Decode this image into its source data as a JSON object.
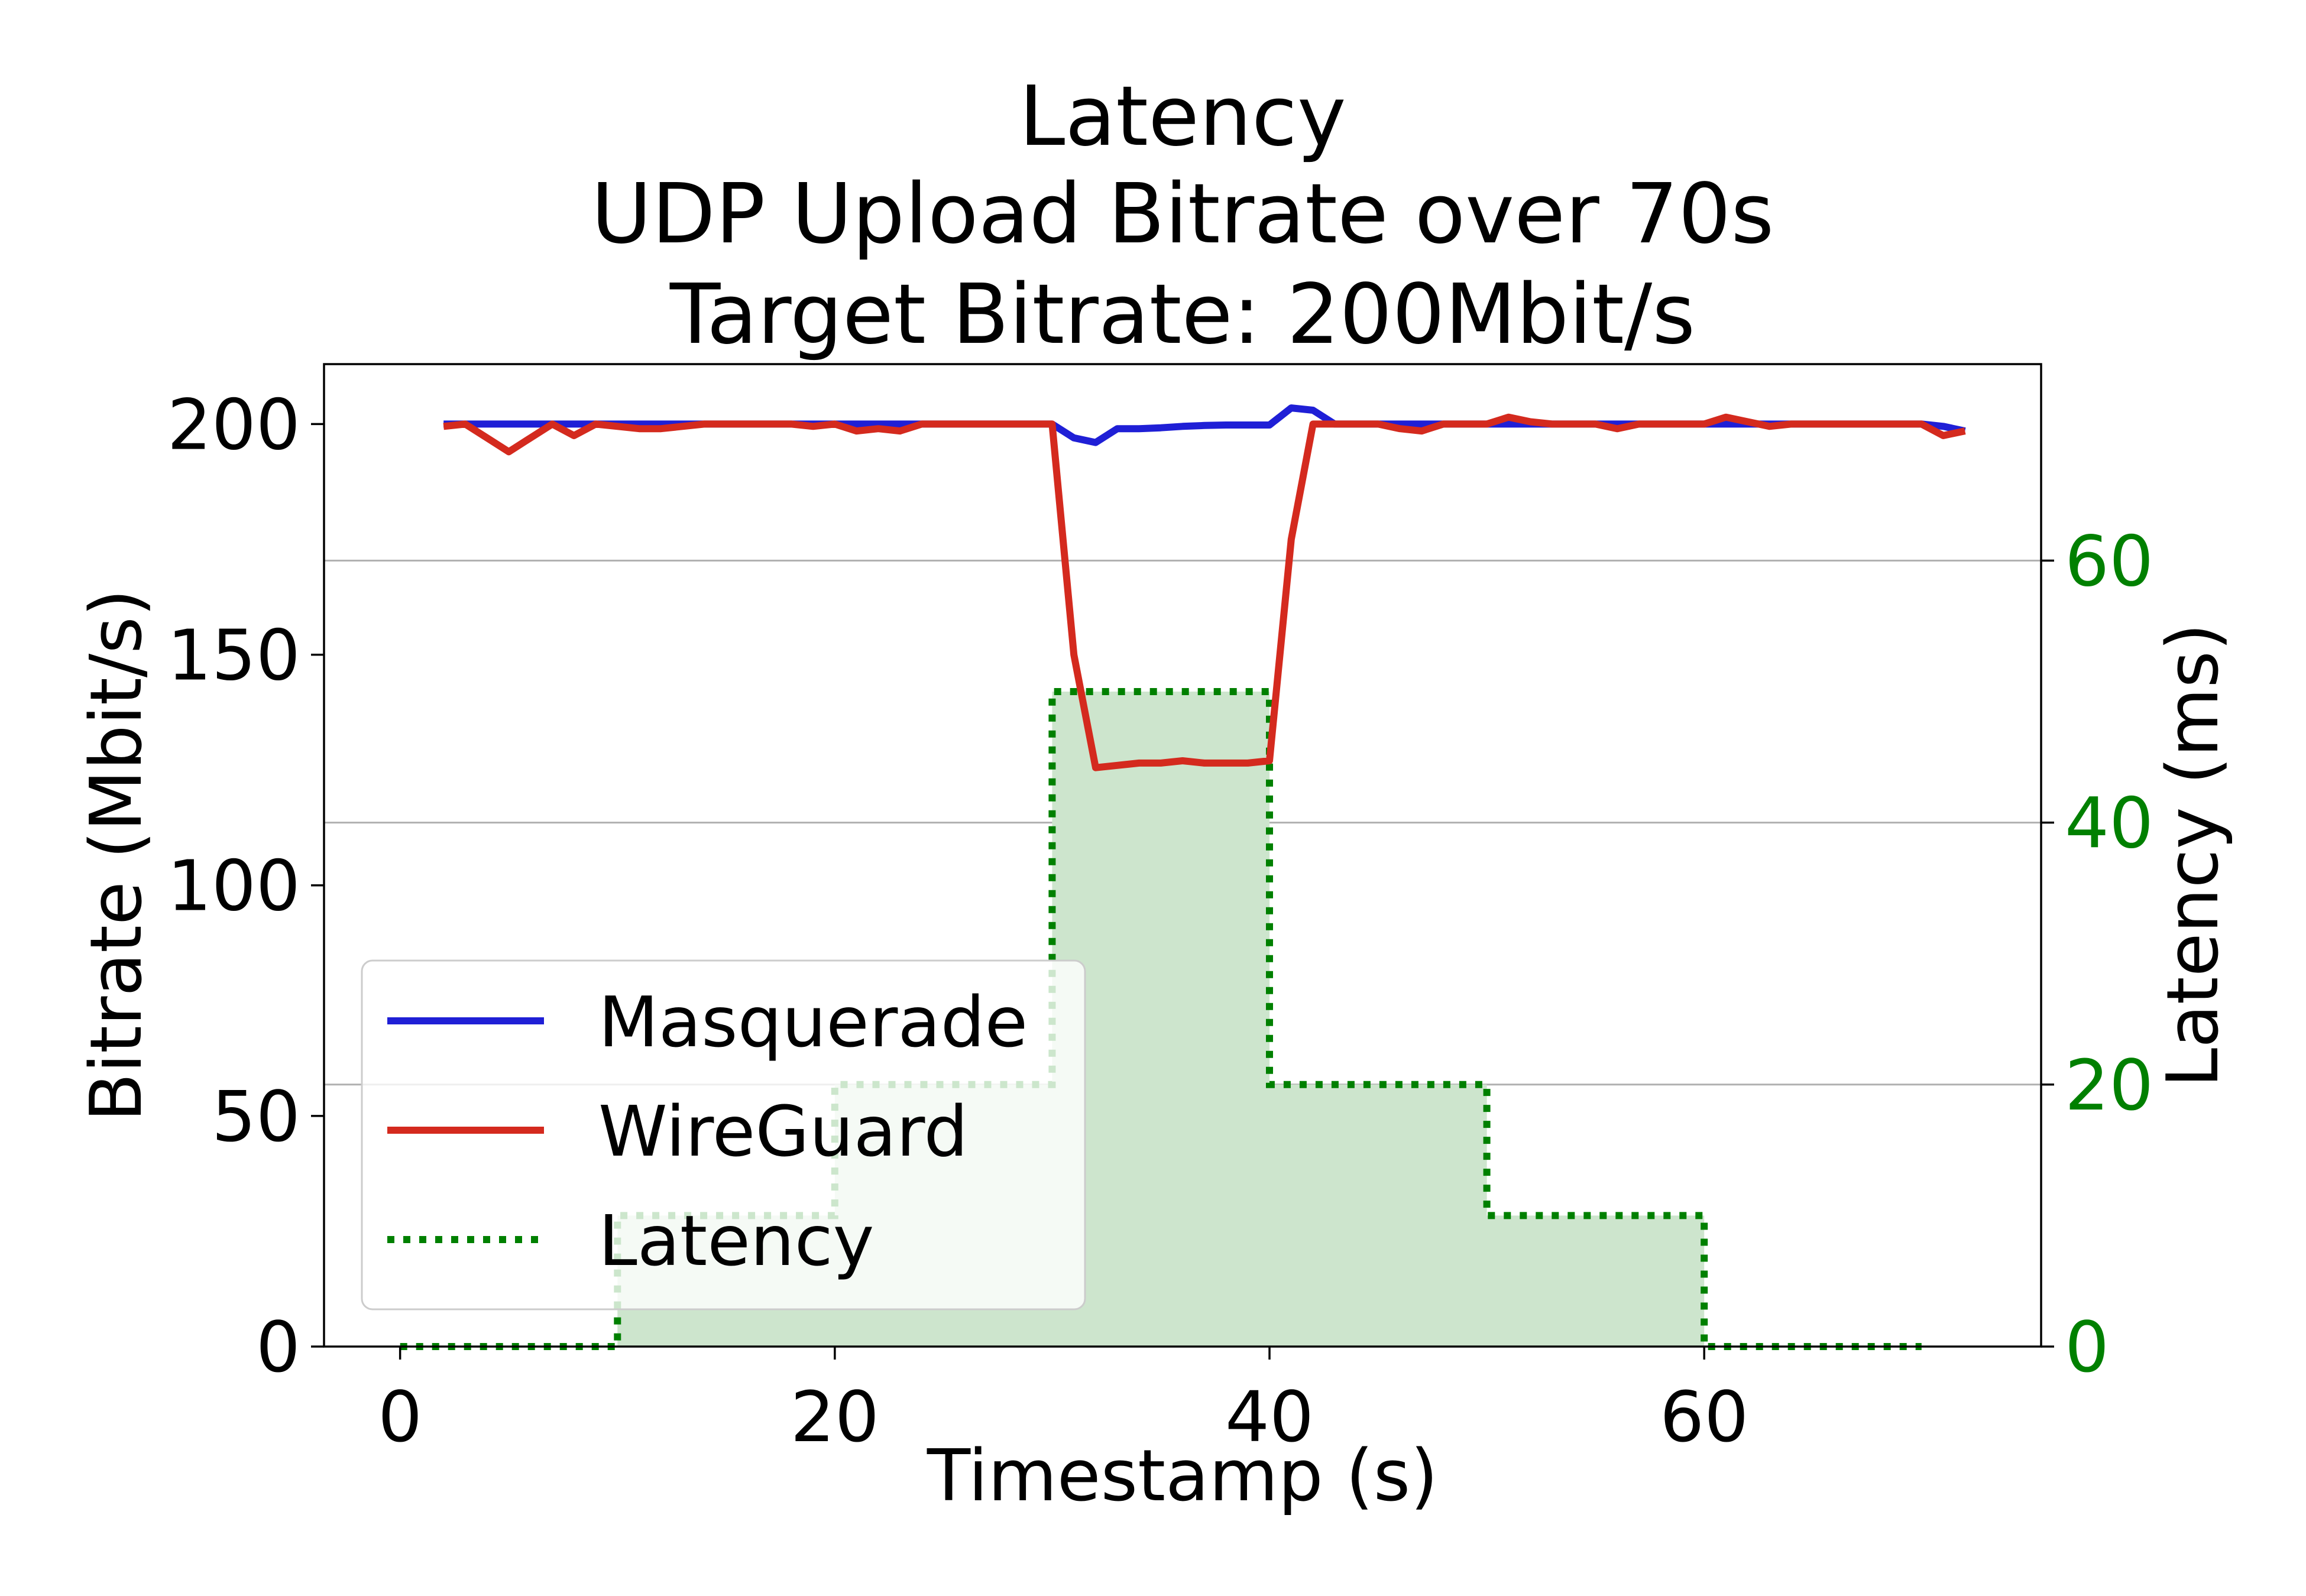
{
  "chart_data": {
    "type": "line",
    "title": [
      "Latency",
      "UDP Upload Bitrate over 70s",
      "Target Bitrate: 200Mbit/s"
    ],
    "xlabel": "Timestamp (s)",
    "ylabel": "Bitrate (Mbit/s)",
    "y2label": "Latency (ms)",
    "xlim": [
      -3.5,
      75.5
    ],
    "ylim": [
      0,
      213
    ],
    "y2lim": [
      0,
      75
    ],
    "xticks": [
      0,
      20,
      40,
      60
    ],
    "yticks": [
      0,
      50,
      100,
      150,
      200
    ],
    "y2ticks": [
      0,
      20,
      40,
      60
    ],
    "grid": "horizontal at right-axis ticks",
    "legend_position": "lower-left",
    "colors": {
      "masquerade": "#1f1fd6",
      "wireguard": "#d42a1e",
      "latency": "#008000",
      "latency_fill": "#cde5cd",
      "right_axis": "#008000",
      "grid": "#b0b0b0"
    },
    "series": [
      {
        "name": "Masquerade",
        "axis": "left",
        "style": "solid",
        "x": [
          2,
          3,
          4,
          5,
          6,
          7,
          8,
          9,
          10,
          11,
          12,
          13,
          14,
          15,
          16,
          17,
          18,
          19,
          20,
          21,
          22,
          23,
          24,
          25,
          26,
          27,
          28,
          29,
          30,
          31,
          32,
          33,
          34,
          35,
          36,
          37,
          38,
          39,
          40,
          41,
          42,
          43,
          44,
          45,
          46,
          47,
          48,
          49,
          50,
          51,
          52,
          53,
          54,
          55,
          56,
          57,
          58,
          59,
          60,
          61,
          62,
          63,
          64,
          65,
          66,
          67,
          68,
          69,
          70,
          71,
          72
        ],
        "values": [
          200,
          200,
          200,
          200,
          200,
          200,
          200,
          200,
          200,
          200,
          200,
          200,
          200,
          200,
          200,
          200,
          200,
          200,
          200,
          200,
          200,
          200,
          200,
          200,
          200,
          200,
          200,
          200,
          200,
          197,
          196,
          199,
          199,
          199.2,
          199.5,
          199.7,
          199.8,
          199.8,
          199.8,
          203.5,
          203,
          200,
          200,
          200,
          200,
          200,
          200,
          200,
          200,
          200,
          200,
          200,
          200,
          200,
          200,
          200,
          200,
          200,
          200,
          200,
          200,
          200,
          200,
          200,
          200,
          200,
          200,
          200,
          200,
          199.5,
          198.5
        ]
      },
      {
        "name": "WireGuard",
        "axis": "left",
        "style": "solid",
        "x": [
          2,
          3,
          4,
          5,
          6,
          7,
          8,
          9,
          10,
          11,
          12,
          13,
          14,
          15,
          16,
          17,
          18,
          19,
          20,
          21,
          22,
          23,
          24,
          25,
          26,
          27,
          28,
          29,
          30,
          31,
          32,
          33,
          34,
          35,
          36,
          37,
          38,
          39,
          40,
          41,
          42,
          43,
          44,
          45,
          46,
          47,
          48,
          49,
          50,
          51,
          52,
          53,
          54,
          55,
          56,
          57,
          58,
          59,
          60,
          61,
          62,
          63,
          64,
          65,
          66,
          67,
          68,
          69,
          70,
          71,
          72
        ],
        "values": [
          199.5,
          200,
          197,
          194,
          197,
          200,
          197.5,
          200,
          199.5,
          199,
          199,
          199.5,
          200,
          200,
          200,
          200,
          200,
          199.5,
          200,
          198.5,
          199,
          198.5,
          200,
          200,
          200,
          200,
          200,
          200,
          200,
          150,
          125.5,
          126,
          126.5,
          126.5,
          127,
          126.5,
          126.5,
          126.5,
          127,
          175,
          200,
          200,
          200,
          200,
          199,
          198.5,
          200,
          200,
          200,
          201.5,
          200.5,
          200,
          200,
          200,
          199,
          200,
          200,
          200,
          200,
          201.5,
          200.5,
          199.5,
          200,
          200,
          200,
          200,
          200,
          200,
          200,
          197.5,
          198.5
        ]
      },
      {
        "name": "Latency",
        "axis": "right",
        "style": "dotted-step",
        "x": [
          0,
          10,
          10,
          20,
          20,
          30,
          30,
          40,
          40,
          50,
          50,
          60,
          60,
          70
        ],
        "values": [
          0,
          0,
          10,
          10,
          20,
          20,
          50,
          50,
          20,
          20,
          10,
          10,
          0,
          0
        ]
      }
    ]
  }
}
